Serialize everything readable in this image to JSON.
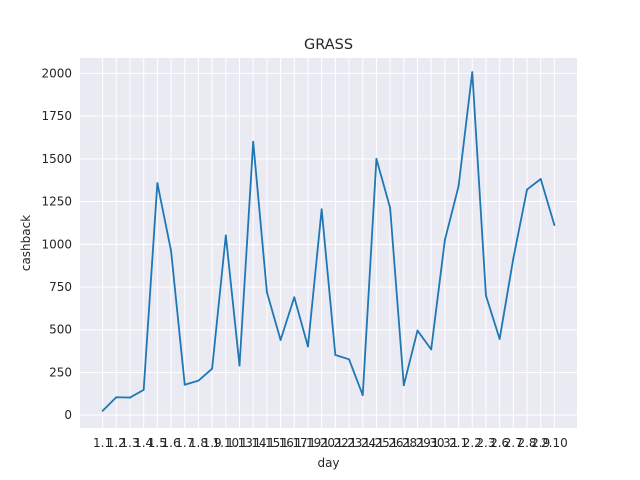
{
  "chart_data": {
    "type": "line",
    "title": "GRASS",
    "xlabel": "day",
    "ylabel": "cashback",
    "x": [
      "1.1",
      "1.2",
      "1.3",
      "1.4",
      "1.5",
      "1.6",
      "1.7",
      "1.8",
      "1.9",
      "1.10",
      "1.13",
      "1.14",
      "1.15",
      "1.16",
      "1.17",
      "1.19",
      "1.20",
      "1.22",
      "1.23",
      "1.24",
      "1.25",
      "1.26",
      "1.28",
      "1.29",
      "1.30",
      "1.31",
      "2.1",
      "2.2",
      "2.3",
      "2.6",
      "2.7",
      "2.8",
      "2.9",
      "2.10"
    ],
    "series": [
      {
        "values": [
          25,
          105,
          103,
          148,
          1358,
          962,
          178,
          202,
          272,
          1052,
          290,
          1600,
          720,
          440,
          690,
          402,
          1205,
          352,
          327,
          117,
          1500,
          1213,
          175,
          495,
          385,
          1025,
          1340,
          2007,
          700,
          446,
          918,
          1320,
          1382,
          1112
        ]
      }
    ],
    "ylim": [
      -75,
      2090
    ],
    "yticks": [
      0,
      250,
      500,
      750,
      1000,
      1250,
      1500,
      1750,
      2000
    ],
    "grid": true,
    "colors": {
      "line": "#1f77b4",
      "plot_bg": "#eaeaf2",
      "grid": "#ffffff"
    }
  }
}
